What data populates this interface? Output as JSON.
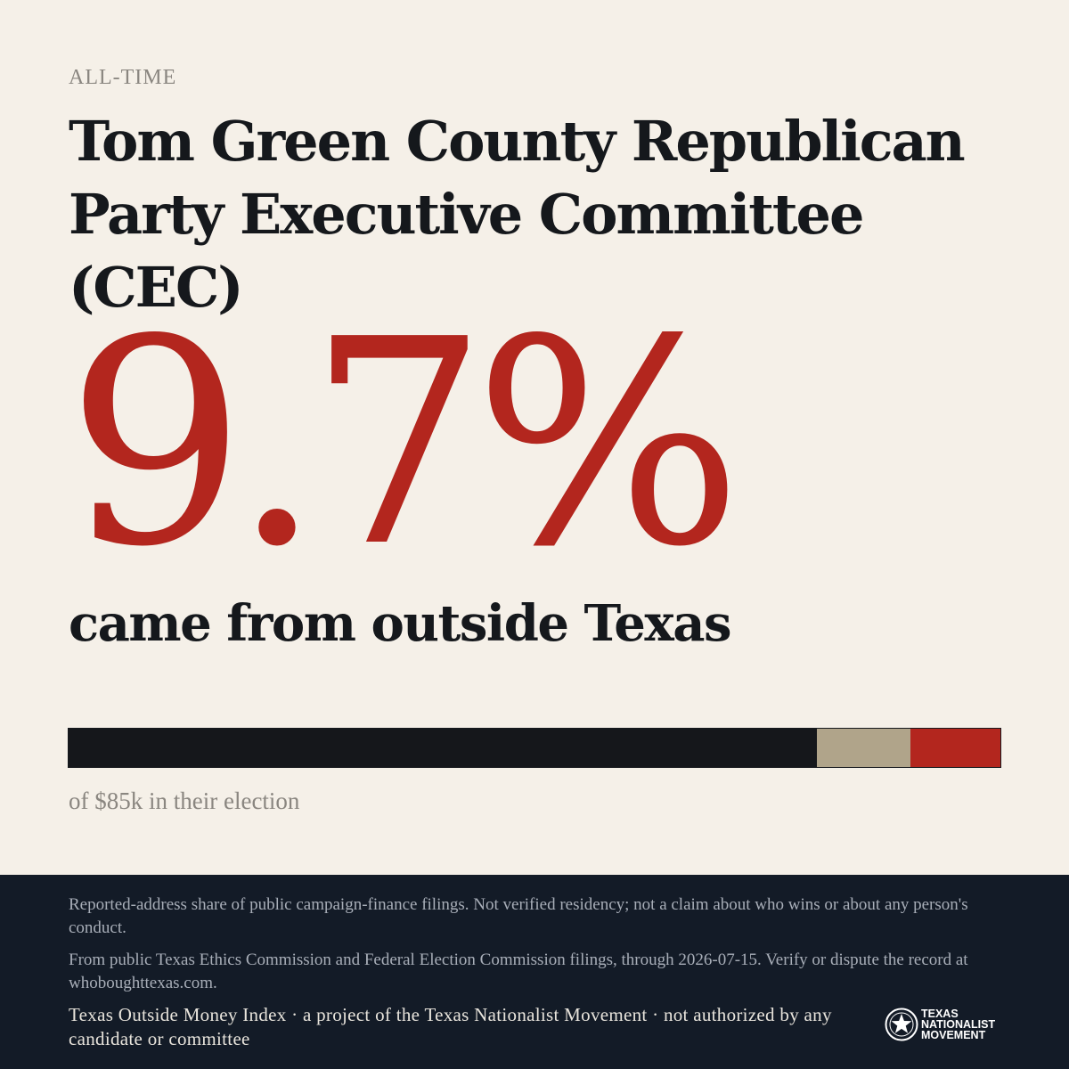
{
  "card": {
    "eyebrow": "ALL-TIME",
    "title": "Tom Green County Republican Party Executive Committee (CEC)",
    "headline_value": "9.7%",
    "headline_caption": "came from outside Texas",
    "bar_caption": "of $85k in their election"
  },
  "bar": {
    "segments": [
      {
        "key": "inside",
        "share": 0.803,
        "color": "#15171b"
      },
      {
        "key": "unknown",
        "share": 0.1,
        "color": "#b0a48a"
      },
      {
        "key": "outside",
        "share": 0.097,
        "color": "#b3261e"
      }
    ]
  },
  "footer": {
    "disclaimer": "Reported-address share of public campaign-finance filings. Not verified residency; not a claim about who wins or about any person's conduct.",
    "source": "From public Texas Ethics Commission and Federal Election Commission filings, through 2026-07-15. Verify or dispute the record at whoboughttexas.com.",
    "credit": "Texas Outside Money Index · a project of the Texas Nationalist Movement · not authorized by any candidate or committee",
    "logo_lines": [
      "TEXAS",
      "NATIONALIST",
      "MOVEMENT"
    ]
  },
  "colors": {
    "accent_red": "#b3261e",
    "ink": "#15181c",
    "background": "#f5f0e8",
    "footer_bg": "#131b27"
  }
}
